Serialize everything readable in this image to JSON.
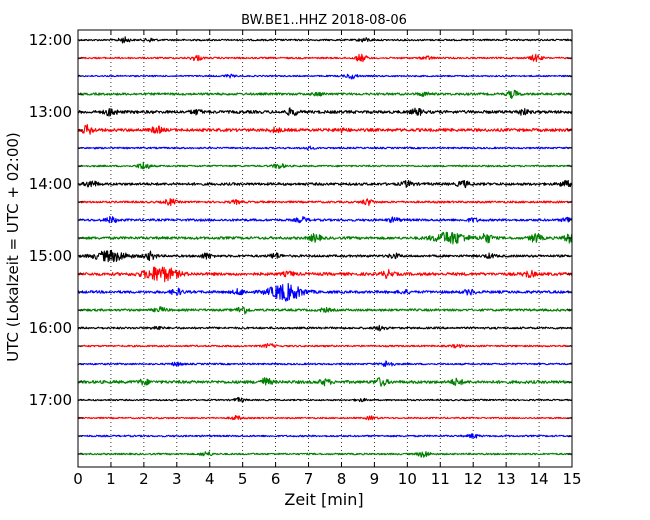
{
  "chart_data": {
    "type": "line",
    "title": "BW.BE1..HHZ 2018-08-06",
    "xlabel": "Zeit  [min]",
    "ylabel": "UTC (Lokalzeit = UTC + 02:00)",
    "xlim": [
      0,
      15
    ],
    "x_ticks": [
      "0",
      "1",
      "2",
      "3",
      "4",
      "5",
      "6",
      "7",
      "8",
      "9",
      "10",
      "11",
      "12",
      "13",
      "14",
      "15"
    ],
    "y_ticks": [
      "12:00",
      "13:00",
      "14:00",
      "15:00",
      "16:00",
      "17:00"
    ],
    "vertical_grid": "dotted",
    "trace_colors": [
      "#000000",
      "#ff0000",
      "#0000ff",
      "#008000"
    ],
    "series": [
      {
        "start": "12:00",
        "amp": 0.25,
        "events": [
          [
            1.4,
            0.8
          ],
          [
            8.7,
            0.6
          ],
          [
            2.2,
            0.5
          ]
        ]
      },
      {
        "start": "12:15",
        "amp": 0.25,
        "events": [
          [
            3.6,
            0.8
          ],
          [
            8.6,
            1.1
          ],
          [
            13.9,
            1.0
          ],
          [
            10.6,
            0.5
          ]
        ]
      },
      {
        "start": "12:30",
        "amp": 0.22,
        "events": [
          [
            8.3,
            0.8
          ],
          [
            4.6,
            0.4
          ]
        ]
      },
      {
        "start": "12:45",
        "amp": 0.35,
        "events": [
          [
            13.2,
            1.1
          ],
          [
            10.5,
            0.5
          ],
          [
            7.3,
            0.4
          ]
        ]
      },
      {
        "start": "13:00",
        "amp": 0.45,
        "events": [
          [
            1.0,
            1.1
          ],
          [
            6.5,
            1.0
          ],
          [
            10.3,
            0.9
          ],
          [
            13.5,
            0.8
          ],
          [
            3.6,
            0.6
          ]
        ]
      },
      {
        "start": "13:15",
        "amp": 0.45,
        "events": [
          [
            0.3,
            1.3
          ],
          [
            2.4,
            0.9
          ],
          [
            6.0,
            0.6
          ],
          [
            8.0,
            0.5
          ]
        ]
      },
      {
        "start": "13:30",
        "amp": 0.25,
        "events": [
          [
            7.0,
            0.4
          ]
        ]
      },
      {
        "start": "13:45",
        "amp": 0.25,
        "events": [
          [
            2.0,
            1.2
          ],
          [
            6.1,
            0.8
          ]
        ]
      },
      {
        "start": "14:00",
        "amp": 0.4,
        "events": [
          [
            0.4,
            1.0
          ],
          [
            10.0,
            0.8
          ],
          [
            11.7,
            0.9
          ],
          [
            14.8,
            0.9
          ]
        ]
      },
      {
        "start": "14:15",
        "amp": 0.3,
        "events": [
          [
            2.8,
            0.9
          ],
          [
            8.8,
            0.9
          ],
          [
            4.8,
            0.5
          ]
        ]
      },
      {
        "start": "14:30",
        "amp": 0.35,
        "events": [
          [
            1.0,
            0.9
          ],
          [
            6.8,
            0.8
          ],
          [
            9.6,
            0.7
          ],
          [
            14.9,
            0.9
          ],
          [
            12.0,
            0.5
          ]
        ]
      },
      {
        "start": "14:45",
        "amp": 0.4,
        "events": [
          [
            7.2,
            1.1
          ],
          [
            11.3,
            1.8
          ],
          [
            12.4,
            1.4
          ],
          [
            13.9,
            1.3
          ],
          [
            14.9,
            1.3
          ]
        ]
      },
      {
        "start": "15:00",
        "amp": 0.35,
        "events": [
          [
            1.0,
            1.6
          ],
          [
            2.2,
            1.2
          ],
          [
            3.9,
            0.8
          ],
          [
            6.0,
            0.8
          ],
          [
            9.6,
            0.7
          ],
          [
            12.5,
            0.6
          ]
        ]
      },
      {
        "start": "15:15",
        "amp": 0.45,
        "events": [
          [
            2.5,
            2.2
          ],
          [
            9.4,
            1.0
          ],
          [
            13.7,
            0.9
          ],
          [
            6.4,
            0.6
          ]
        ]
      },
      {
        "start": "15:30",
        "amp": 0.4,
        "events": [
          [
            6.3,
            2.5
          ],
          [
            3.0,
            0.9
          ],
          [
            4.9,
            0.8
          ],
          [
            11.9,
            0.7
          ],
          [
            9.9,
            0.5
          ]
        ]
      },
      {
        "start": "15:45",
        "amp": 0.35,
        "events": [
          [
            5.0,
            1.2
          ],
          [
            2.5,
            0.7
          ],
          [
            7.5,
            0.5
          ]
        ]
      },
      {
        "start": "16:00",
        "amp": 0.3,
        "events": [
          [
            9.2,
            0.7
          ],
          [
            2.4,
            0.5
          ]
        ]
      },
      {
        "start": "16:15",
        "amp": 0.25,
        "events": [
          [
            5.8,
            0.6
          ],
          [
            11.5,
            0.4
          ]
        ]
      },
      {
        "start": "16:30",
        "amp": 0.25,
        "events": [
          [
            9.4,
            1.0
          ],
          [
            3.0,
            0.5
          ]
        ]
      },
      {
        "start": "16:45",
        "amp": 0.45,
        "events": [
          [
            5.7,
            1.1
          ],
          [
            9.2,
            1.2
          ],
          [
            11.5,
            0.9
          ],
          [
            7.5,
            0.8
          ],
          [
            2.0,
            0.7
          ]
        ]
      },
      {
        "start": "17:00",
        "amp": 0.22,
        "events": [
          [
            4.9,
            0.6
          ],
          [
            8.6,
            0.4
          ]
        ]
      },
      {
        "start": "17:15",
        "amp": 0.22,
        "events": [
          [
            4.8,
            0.6
          ],
          [
            8.9,
            0.5
          ]
        ]
      },
      {
        "start": "17:30",
        "amp": 0.25,
        "events": [
          [
            12.0,
            0.6
          ]
        ]
      },
      {
        "start": "17:45",
        "amp": 0.25,
        "events": [
          [
            3.9,
            0.7
          ],
          [
            10.5,
            1.0
          ]
        ]
      }
    ]
  }
}
